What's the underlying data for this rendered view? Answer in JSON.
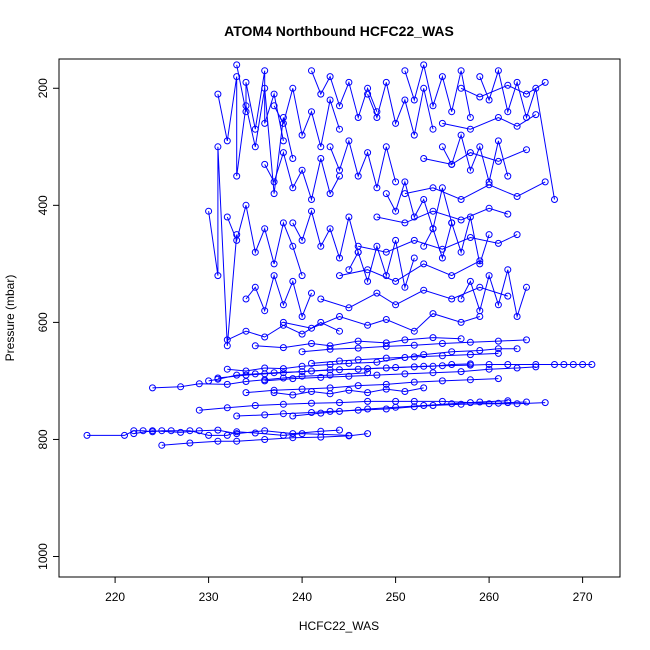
{
  "chart_data": {
    "type": "scatter",
    "title": "ATOM4 Northbound HCFC22_WAS",
    "xlabel": "HCFC22_WAS",
    "ylabel": "Pressure (mbar)",
    "xlim": [
      214,
      274
    ],
    "ylim": [
      1035,
      150
    ],
    "y_reversed": true,
    "xticks": [
      220,
      230,
      240,
      250,
      260,
      270
    ],
    "yticks": [
      200,
      400,
      600,
      800,
      1000
    ],
    "grid": false,
    "legend": "none",
    "connected": true,
    "color": "#0000ff",
    "marker": "open-circle",
    "series": [
      {
        "x": [
          217,
          221,
          222,
          223,
          224,
          225,
          226,
          228,
          230,
          232,
          233,
          235,
          238,
          240,
          245
        ],
        "y": [
          793,
          793,
          785,
          785,
          787,
          785,
          785,
          785,
          793,
          793,
          787,
          789,
          793,
          790,
          793
        ]
      },
      {
        "x": [
          222,
          224,
          227,
          229,
          231,
          233,
          236,
          239,
          242,
          244
        ],
        "y": [
          790,
          785,
          788,
          785,
          784,
          790,
          785,
          790,
          786,
          784
        ]
      },
      {
        "x": [
          224,
          227,
          229,
          232,
          234,
          236,
          238,
          240,
          243,
          247
        ],
        "y": [
          712,
          710,
          705,
          706,
          701,
          698,
          695,
          692,
          690,
          686
        ]
      },
      {
        "x": [
          225,
          228,
          231,
          233,
          236,
          239,
          242,
          245,
          247
        ],
        "y": [
          810,
          806,
          803,
          803,
          800,
          797,
          796,
          794,
          790
        ]
      },
      {
        "x": [
          230,
          231,
          233,
          235,
          237,
          240,
          243,
          246,
          249,
          252,
          254,
          256,
          258
        ],
        "y": [
          700,
          697,
          690,
          688,
          686,
          684,
          681,
          680,
          678,
          676,
          675,
          672,
          671
        ]
      },
      {
        "x": [
          229,
          232,
          235,
          238,
          241,
          244,
          247,
          250,
          252,
          255,
          258,
          261,
          262,
          264
        ],
        "y": [
          750,
          746,
          742,
          740,
          738,
          737,
          735,
          735,
          735,
          735,
          737,
          738,
          737,
          736
        ]
      },
      {
        "x": [
          231,
          234,
          236,
          238,
          241,
          244,
          247,
          250,
          253,
          255,
          258,
          260,
          262,
          265,
          267,
          268,
          269,
          270,
          271
        ],
        "y": [
          695,
          690,
          688,
          686,
          683,
          681,
          679,
          677,
          675,
          674,
          673,
          672,
          672,
          672,
          672,
          672,
          672,
          672,
          672
        ]
      },
      {
        "x": [
          233,
          236,
          238,
          241,
          243,
          246,
          249,
          252,
          254,
          257,
          260,
          263,
          266
        ],
        "y": [
          760,
          758,
          756,
          754,
          752,
          750,
          748,
          744,
          742,
          740,
          739,
          739,
          737
        ]
      },
      {
        "x": [
          232,
          234,
          236,
          238,
          240,
          243,
          245,
          248,
          251,
          253,
          256,
          259,
          261,
          263
        ],
        "y": [
          680,
          683,
          678,
          679,
          675,
          672,
          670,
          668,
          660,
          655,
          650,
          648,
          645,
          645
        ]
      },
      {
        "x": [
          234,
          237,
          240,
          243,
          246,
          249,
          252,
          255,
          258,
          261
        ],
        "y": [
          720,
          716,
          714,
          712,
          708,
          706,
          702,
          700,
          698,
          696
        ]
      },
      {
        "x": [
          235,
          238,
          241,
          243,
          246,
          249,
          251,
          254,
          257
        ],
        "y": [
          640,
          643,
          636,
          640,
          632,
          635,
          630,
          626,
          628
        ]
      },
      {
        "x": [
          236,
          239,
          242,
          245,
          248,
          251,
          254,
          257,
          260,
          263,
          265
        ],
        "y": [
          700,
          696,
          694,
          692,
          690,
          688,
          686,
          684,
          680,
          678,
          676
        ]
      },
      {
        "x": [
          238,
          241,
          244,
          247,
          249,
          252,
          254,
          257,
          259
        ],
        "y": [
          600,
          610,
          590,
          605,
          595,
          615,
          585,
          600,
          590
        ]
      },
      {
        "x": [
          240,
          243,
          246,
          249,
          252,
          255,
          258,
          261,
          264
        ],
        "y": [
          650,
          646,
          644,
          641,
          639,
          636,
          634,
          632,
          630
        ]
      },
      {
        "x": [
          242,
          245,
          248,
          250,
          253,
          256,
          259,
          262
        ],
        "y": [
          560,
          575,
          550,
          570,
          545,
          560,
          540,
          555
        ]
      },
      {
        "x": [
          244,
          247,
          250,
          253,
          256,
          259
        ],
        "y": [
          520,
          510,
          530,
          500,
          520,
          495
        ]
      },
      {
        "x": [
          246,
          249,
          252,
          255,
          258,
          261,
          263
        ],
        "y": [
          470,
          480,
          460,
          475,
          455,
          465,
          450
        ]
      },
      {
        "x": [
          248,
          251,
          254,
          257,
          260,
          262
        ],
        "y": [
          420,
          430,
          410,
          425,
          405,
          415
        ]
      },
      {
        "x": [
          251,
          254,
          257,
          260,
          263,
          266
        ],
        "y": [
          380,
          370,
          390,
          365,
          385,
          360
        ]
      },
      {
        "x": [
          253,
          256,
          258,
          261,
          264
        ],
        "y": [
          320,
          330,
          310,
          325,
          305
        ]
      },
      {
        "x": [
          255,
          258,
          261,
          263,
          265
        ],
        "y": [
          260,
          270,
          250,
          265,
          245
        ]
      },
      {
        "x": [
          257,
          259,
          262,
          264,
          266
        ],
        "y": [
          200,
          215,
          195,
          210,
          190
        ]
      },
      {
        "x": [
          231,
          232,
          233,
          233,
          234,
          235,
          236,
          237,
          238,
          239
        ],
        "y": [
          210,
          290,
          180,
          350,
          230,
          300,
          200,
          380,
          250,
          320
        ]
      },
      {
        "x": [
          232,
          233,
          234,
          235,
          236,
          237,
          238,
          239,
          240
        ],
        "y": [
          420,
          460,
          400,
          480,
          440,
          500,
          430,
          470,
          520
        ]
      },
      {
        "x": [
          233,
          234,
          234,
          235,
          236,
          236,
          237,
          238
        ],
        "y": [
          160,
          240,
          190,
          270,
          170,
          260,
          210,
          290
        ]
      },
      {
        "x": [
          234,
          235,
          236,
          237,
          238,
          239,
          240,
          241
        ],
        "y": [
          560,
          540,
          580,
          520,
          570,
          530,
          590,
          550
        ]
      },
      {
        "x": [
          236,
          237,
          238,
          239,
          240,
          241,
          242,
          243,
          244
        ],
        "y": [
          330,
          360,
          310,
          370,
          340,
          390,
          320,
          380,
          350
        ]
      },
      {
        "x": [
          237,
          238,
          239,
          240,
          241,
          242,
          243,
          244
        ],
        "y": [
          230,
          260,
          200,
          280,
          240,
          300,
          220,
          270
        ]
      },
      {
        "x": [
          239,
          240,
          241,
          242,
          243,
          244,
          245,
          246
        ],
        "y": [
          430,
          460,
          410,
          470,
          440,
          490,
          420,
          480
        ]
      },
      {
        "x": [
          241,
          242,
          243,
          244,
          245,
          246,
          247,
          248
        ],
        "y": [
          170,
          210,
          180,
          230,
          190,
          250,
          200,
          240
        ]
      },
      {
        "x": [
          243,
          244,
          245,
          246,
          247,
          248,
          249,
          250
        ],
        "y": [
          300,
          340,
          290,
          350,
          310,
          370,
          300,
          360
        ]
      },
      {
        "x": [
          245,
          246,
          247,
          248,
          249,
          250,
          251,
          252
        ],
        "y": [
          510,
          480,
          530,
          470,
          520,
          460,
          540,
          490
        ]
      },
      {
        "x": [
          247,
          248,
          249,
          250,
          251,
          252,
          253,
          254
        ],
        "y": [
          210,
          250,
          190,
          260,
          220,
          280,
          200,
          270
        ]
      },
      {
        "x": [
          249,
          250,
          251,
          252,
          253,
          254,
          255,
          256
        ],
        "y": [
          380,
          410,
          360,
          420,
          390,
          440,
          370,
          430
        ]
      },
      {
        "x": [
          251,
          252,
          253,
          254,
          255,
          256,
          257,
          258
        ],
        "y": [
          170,
          220,
          160,
          230,
          180,
          240,
          170,
          250
        ]
      },
      {
        "x": [
          253,
          254,
          255,
          256,
          257,
          258,
          259,
          260
        ],
        "y": [
          470,
          440,
          490,
          430,
          480,
          420,
          500,
          450
        ]
      },
      {
        "x": [
          255,
          256,
          257,
          258,
          259,
          260,
          261,
          262
        ],
        "y": [
          300,
          330,
          280,
          340,
          300,
          360,
          290,
          350
        ]
      },
      {
        "x": [
          257,
          258,
          259,
          260,
          261,
          262,
          263,
          264
        ],
        "y": [
          560,
          530,
          580,
          520,
          570,
          510,
          590,
          540
        ]
      },
      {
        "x": [
          259,
          260,
          261,
          262,
          263,
          264,
          265,
          267
        ],
        "y": [
          180,
          220,
          170,
          240,
          190,
          250,
          200,
          390
        ]
      },
      {
        "x": [
          230,
          231,
          231,
          232,
          233
        ],
        "y": [
          410,
          520,
          300,
          640,
          450
        ]
      },
      {
        "x": [
          232,
          234,
          236,
          238,
          240,
          242,
          244
        ],
        "y": [
          630,
          615,
          625,
          605,
          620,
          600,
          615
        ]
      },
      {
        "x": [
          237,
          239,
          241,
          243,
          245,
          247,
          249,
          251,
          253
        ],
        "y": [
          720,
          724,
          718,
          722,
          716,
          720,
          714,
          718,
          712
        ]
      },
      {
        "x": [
          239,
          242,
          244,
          247,
          250,
          253,
          256,
          259,
          262
        ],
        "y": [
          760,
          755,
          752,
          748,
          745,
          742,
          739,
          736,
          734
        ]
      },
      {
        "x": [
          241,
          244,
          246,
          249,
          252,
          255,
          258,
          261
        ],
        "y": [
          670,
          666,
          664,
          661,
          659,
          657,
          655,
          653
        ]
      }
    ]
  }
}
